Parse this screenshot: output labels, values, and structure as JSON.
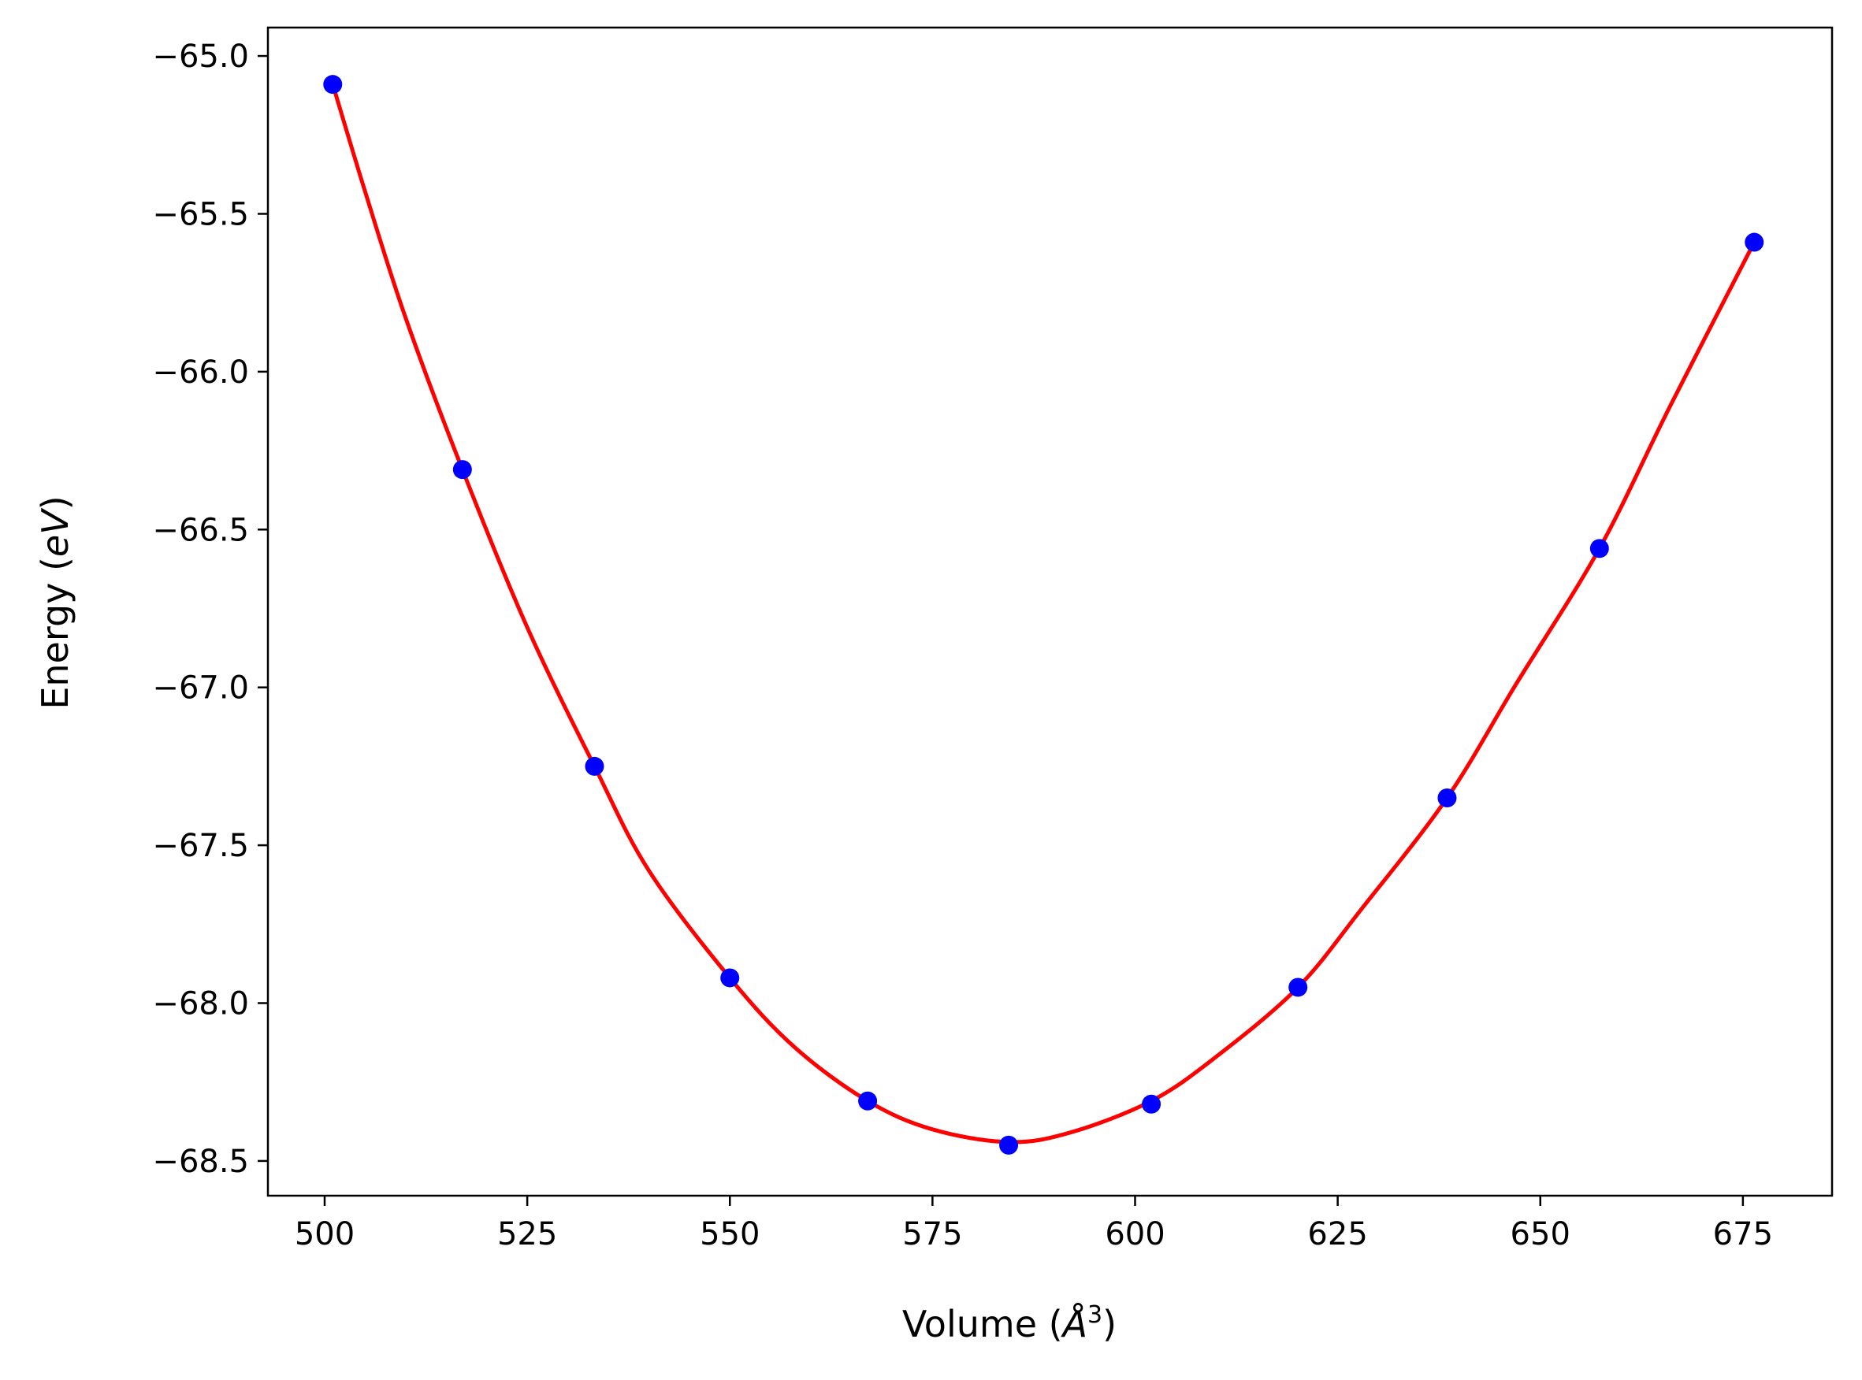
{
  "chart_data": {
    "type": "scatter",
    "title": "",
    "xlabel": "Volume (Å³)",
    "xlabel_parts": {
      "prefix": "Volume (",
      "symbol": "Å",
      "exponent": "3",
      "suffix": ")"
    },
    "ylabel": "Energy (eV)",
    "ylabel_parts": {
      "prefix": "Energy (",
      "italic": "eV",
      "suffix": ")"
    },
    "xlim": [
      493,
      686
    ],
    "ylim": [
      -68.61,
      -64.91
    ],
    "xticks": [
      500,
      525,
      550,
      575,
      600,
      625,
      650,
      675
    ],
    "xtick_labels": [
      "500",
      "525",
      "550",
      "575",
      "600",
      "625",
      "650",
      "675"
    ],
    "yticks": [
      -65.0,
      -65.5,
      -66.0,
      -66.5,
      -67.0,
      -67.5,
      -68.0,
      -68.5
    ],
    "ytick_labels": [
      "−65.0",
      "−65.5",
      "−66.0",
      "−66.5",
      "−67.0",
      "−67.5",
      "−68.0",
      "−68.5"
    ],
    "grid": false,
    "legend": "none",
    "series": [
      {
        "kind": "points",
        "color": "#0000ff",
        "x": [
          501.0,
          517.0,
          533.3,
          550.0,
          567.0,
          584.4,
          602.0,
          620.1,
          638.5,
          657.3,
          676.4
        ],
        "y": [
          -65.09,
          -66.31,
          -67.25,
          -67.92,
          -68.31,
          -68.45,
          -68.32,
          -67.95,
          -67.35,
          -66.56,
          -65.59
        ]
      },
      {
        "kind": "fit-line",
        "color": "#ff0000",
        "x": [
          501.0,
          505.0,
          510.0,
          517.0,
          525.0,
          533.3,
          540.0,
          550.0,
          558.0,
          567.0,
          575.0,
          584.4,
          592.0,
          602.0,
          610.0,
          620.1,
          628.0,
          638.5,
          647.0,
          657.3,
          666.0,
          676.4
        ],
        "y": [
          -65.09,
          -65.43,
          -65.83,
          -66.31,
          -66.81,
          -67.25,
          -67.58,
          -67.92,
          -68.14,
          -68.31,
          -68.4,
          -68.44,
          -68.41,
          -68.31,
          -68.17,
          -67.95,
          -67.7,
          -67.35,
          -66.99,
          -66.56,
          -66.11,
          -65.59
        ]
      }
    ]
  }
}
